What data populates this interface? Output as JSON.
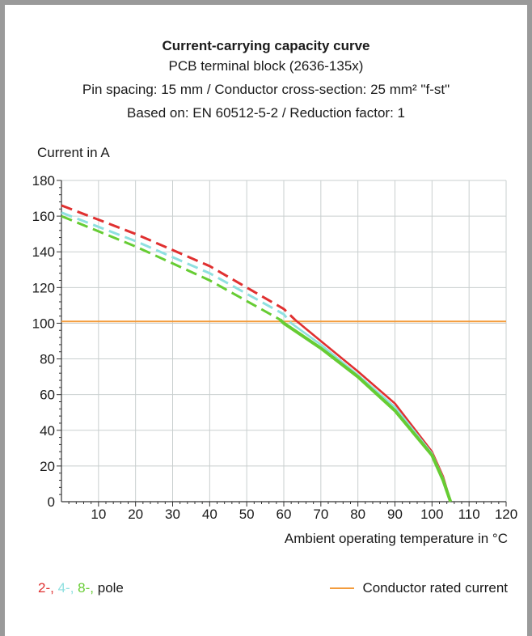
{
  "chart_data": {
    "type": "line",
    "title": "Current-carrying capacity curve",
    "subtitle_lines": [
      "PCB terminal block (2636-135x)",
      "Pin spacing: 15 mm / Conductor cross-section: 25 mm² \"f-st\"",
      "Based on: EN 60512-5-2 / Reduction factor: 1"
    ],
    "ylabel": "Current in A",
    "xlabel": "Ambient operating temperature in °C",
    "xlim": [
      0,
      120
    ],
    "ylim": [
      0,
      180
    ],
    "x_ticks": [
      "10",
      "20",
      "30",
      "40",
      "50",
      "60",
      "70",
      "80",
      "90",
      "100",
      "110",
      "120"
    ],
    "y_ticks": [
      "0",
      "20",
      "40",
      "60",
      "80",
      "100",
      "120",
      "140",
      "160",
      "180"
    ],
    "grid": true,
    "series": [
      {
        "name": "2-",
        "color": "#e03030",
        "x": [
          0,
          20,
          40,
          60,
          63,
          70,
          80,
          90,
          100,
          103,
          105
        ],
        "y": [
          166,
          150,
          132,
          108,
          102,
          90,
          73,
          55,
          28,
          14,
          0
        ]
      },
      {
        "name": "4-",
        "color": "#8fe0e0",
        "x": [
          0,
          20,
          40,
          60,
          62,
          70,
          80,
          90,
          100,
          103,
          105
        ],
        "y": [
          162,
          146,
          128,
          105,
          100,
          88,
          71,
          53,
          27,
          13,
          0
        ]
      },
      {
        "name": "8-",
        "color": "#66cc33",
        "x": [
          0,
          20,
          40,
          59,
          60,
          70,
          80,
          90,
          100,
          103,
          105
        ],
        "y": [
          160,
          143,
          124,
          102,
          100,
          86,
          70,
          51,
          26,
          12,
          0
        ]
      }
    ],
    "reference_line": {
      "name": "Conductor rated current",
      "value": 101,
      "color": "#f39c3c"
    }
  },
  "legend": {
    "pole_labels": [
      "2-,",
      "4-,",
      "8-,"
    ],
    "pole_text": "pole",
    "rated_current_label": "Conductor rated current"
  }
}
